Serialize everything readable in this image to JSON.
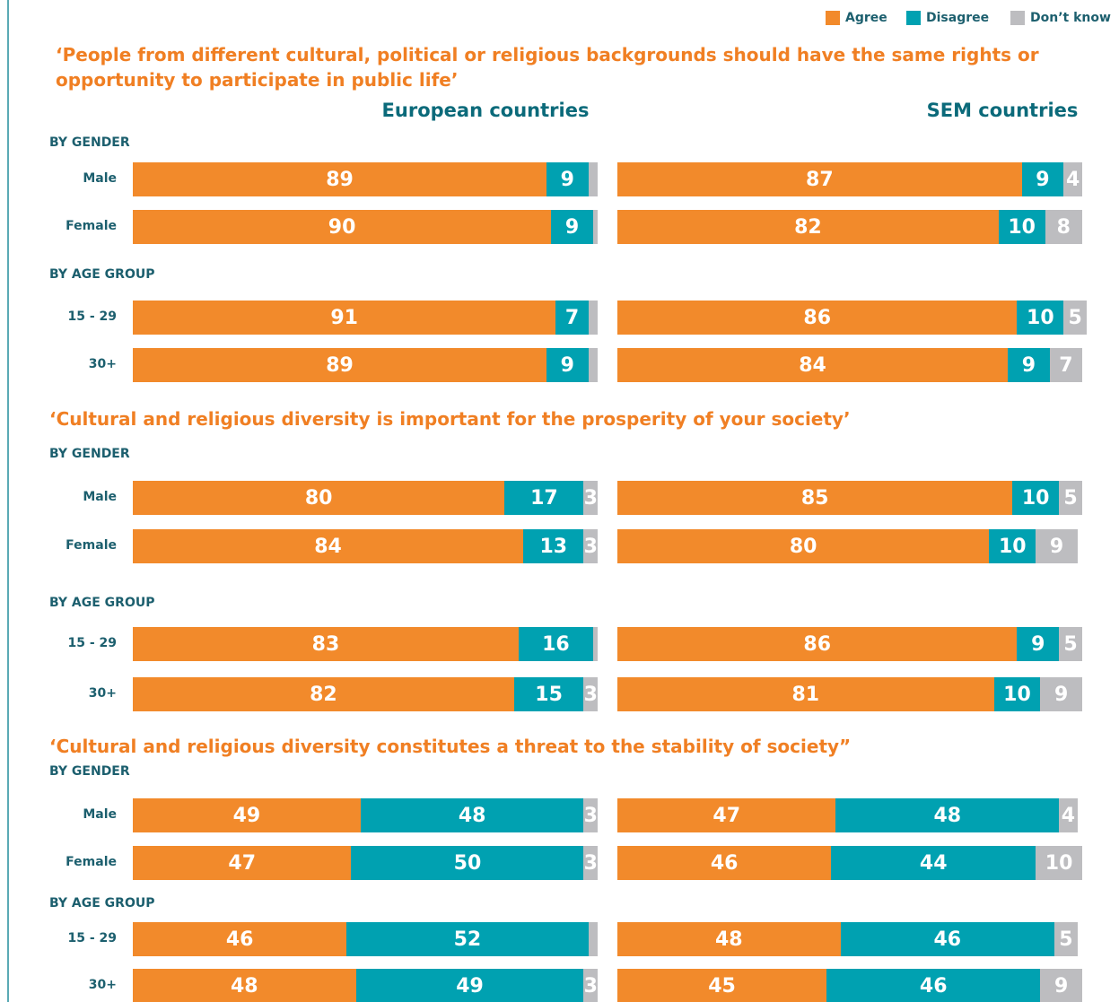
{
  "chart_data": {
    "type": "bar",
    "stacked": true,
    "orientation": "horizontal",
    "xlim": [
      0,
      100
    ],
    "series": [
      {
        "name": "Agree",
        "color": "#f28a2b"
      },
      {
        "name": "Disagree",
        "color": "#00a1b1"
      },
      {
        "name": "Don’t know",
        "color": "#bdbdc0"
      }
    ],
    "columns": [
      "European countries",
      "SEM countries"
    ],
    "sections": [
      {
        "title": "‘People from different cultural, political or religious backgrounds should have the same rights or opportunity to participate in public life’",
        "groups": [
          {
            "label": "BY GENDER",
            "categories": [
              "Male",
              "Female"
            ],
            "data": [
              [
                [
                  89,
                  9,
                  2
                ],
                [
                  90,
                  9,
                  1
                ]
              ],
              [
                [
                  87,
                  9,
                  4
                ],
                [
                  82,
                  10,
                  8
                ]
              ]
            ]
          },
          {
            "label": "BY AGE GROUP",
            "categories": [
              "15 - 29",
              "30+"
            ],
            "data": [
              [
                [
                  91,
                  7,
                  2
                ],
                [
                  89,
                  9,
                  2
                ]
              ],
              [
                [
                  86,
                  10,
                  5
                ],
                [
                  84,
                  9,
                  7
                ]
              ]
            ]
          }
        ]
      },
      {
        "title": "‘Cultural and religious diversity is important for the prosperity of your society’",
        "groups": [
          {
            "label": "BY GENDER",
            "categories": [
              "Male",
              "Female"
            ],
            "data": [
              [
                [
                  80,
                  17,
                  3
                ],
                [
                  84,
                  13,
                  3
                ]
              ],
              [
                [
                  85,
                  10,
                  5
                ],
                [
                  80,
                  10,
                  9
                ]
              ]
            ]
          },
          {
            "label": "BY AGE GROUP",
            "categories": [
              "15 - 29",
              "30+"
            ],
            "data": [
              [
                [
                  83,
                  16,
                  1
                ],
                [
                  82,
                  15,
                  3
                ]
              ],
              [
                [
                  86,
                  9,
                  5
                ],
                [
                  81,
                  10,
                  9
                ]
              ]
            ]
          }
        ]
      },
      {
        "title": "‘Cultural and religious diversity constitutes a threat to the stability of society”",
        "groups": [
          {
            "label": "BY GENDER",
            "categories": [
              "Male",
              "Female"
            ],
            "data": [
              [
                [
                  49,
                  48,
                  3
                ],
                [
                  47,
                  50,
                  3
                ]
              ],
              [
                [
                  47,
                  48,
                  4
                ],
                [
                  46,
                  44,
                  10
                ]
              ]
            ]
          },
          {
            "label": "BY AGE GROUP",
            "categories": [
              "15 - 29",
              "30+"
            ],
            "data": [
              [
                [
                  46,
                  52,
                  2
                ],
                [
                  48,
                  49,
                  3
                ]
              ],
              [
                [
                  48,
                  46,
                  5
                ],
                [
                  45,
                  46,
                  9
                ]
              ]
            ]
          }
        ]
      }
    ]
  }
}
